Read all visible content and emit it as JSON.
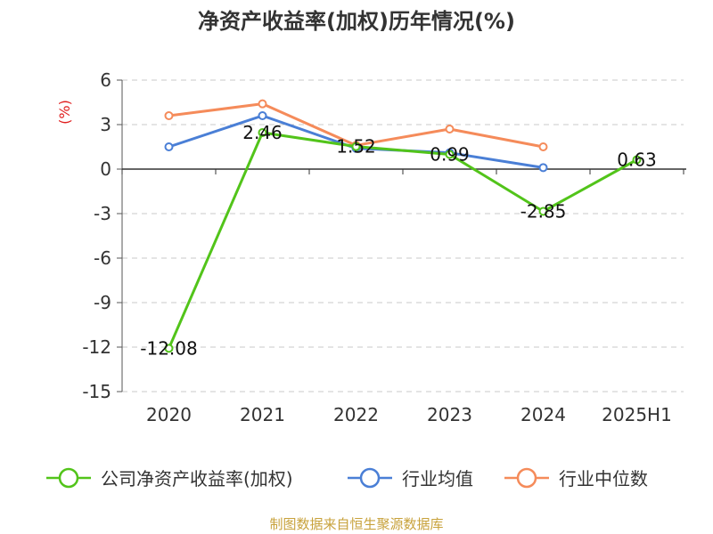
{
  "chart_data": {
    "type": "line",
    "title": "净资产收益率(加权)历年情况(%)",
    "ylabel": "(%)",
    "categories": [
      "2020",
      "2021",
      "2022",
      "2023",
      "2024",
      "2025H1"
    ],
    "ylim": [
      -15,
      6
    ],
    "yticks": [
      6,
      3,
      0,
      -3,
      -6,
      -9,
      -12,
      -15
    ],
    "grid": true,
    "legend_position": "bottom",
    "series": [
      {
        "name": "公司净资产收益率(加权)",
        "color": "#52c41a",
        "values": [
          -12.08,
          2.46,
          1.52,
          0.99,
          -2.85,
          0.63
        ],
        "labels": [
          "-12.08",
          "2.46",
          "1.52",
          "0.99",
          "-2.85",
          "0.63"
        ]
      },
      {
        "name": "行业均值",
        "color": "#4a7fd6",
        "values": [
          1.5,
          3.6,
          1.4,
          1.1,
          0.1,
          null
        ]
      },
      {
        "name": "行业中位数",
        "color": "#f58b5a",
        "values": [
          3.6,
          4.4,
          1.6,
          2.7,
          1.5,
          null
        ]
      }
    ]
  },
  "source": "制图数据来自恒生聚源数据库"
}
